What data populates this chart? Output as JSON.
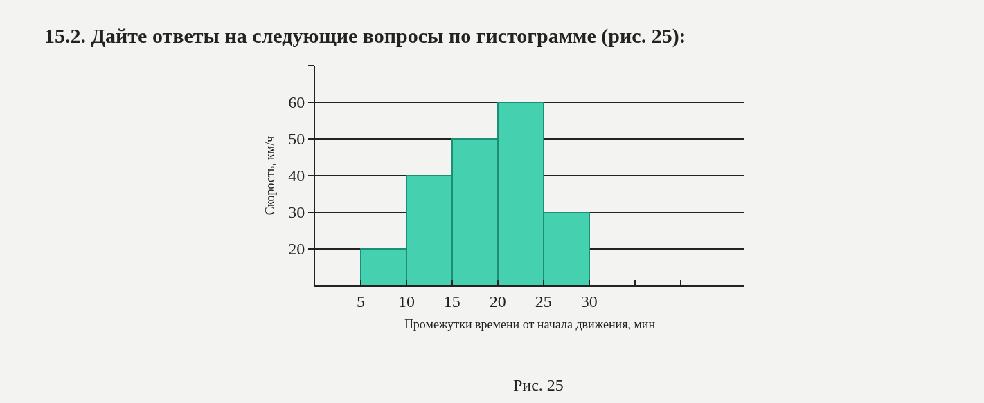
{
  "chart_data": {
    "type": "histogram",
    "title": "15.2. Дайте ответы на следующие вопросы по гистограмме (рис. 25):",
    "xlabel": "Промежутки времени от начала движения, мин",
    "ylabel": "Скорость, км/ч",
    "bins": [
      5,
      10,
      15,
      20,
      25,
      30
    ],
    "values": [
      20,
      40,
      50,
      60,
      30
    ],
    "color": "#45d1b0",
    "xlim": [
      0,
      47
    ],
    "xticks": [
      5,
      10,
      15,
      20,
      25,
      30,
      {
        "value": 35,
        "label": null
      },
      {
        "value": 40,
        "label": null
      }
    ],
    "ylim": [
      10,
      70
    ],
    "yticks": [
      20,
      30,
      40,
      50,
      60,
      {
        "value": 70,
        "label": null
      }
    ],
    "grid": "y",
    "annotations": [
      "Рис. 25"
    ]
  }
}
